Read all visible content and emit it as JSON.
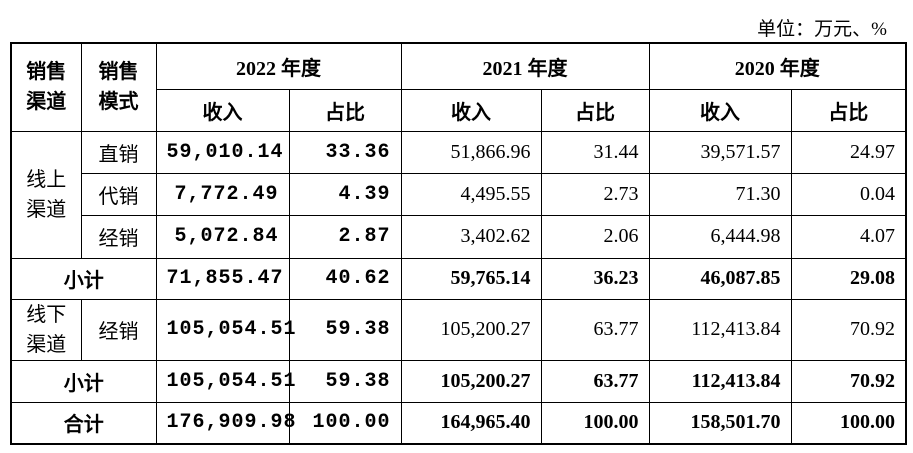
{
  "unit": "单位：万元、%",
  "table": {
    "head": {
      "channel": "销售渠道",
      "mode": "销售模式",
      "years": [
        "2022 年度",
        "2021 年度",
        "2020 年度"
      ],
      "sub": [
        "收入",
        "占比",
        "收入",
        "占比",
        "收入",
        "占比"
      ]
    },
    "online": {
      "channel": "线上渠道",
      "rows": [
        {
          "mode": "直销",
          "values": [
            "59,010.14",
            "33.36",
            "51,866.96",
            "31.44",
            "39,571.57",
            "24.97"
          ]
        },
        {
          "mode": "代销",
          "values": [
            "7,772.49",
            "4.39",
            "4,495.55",
            "2.73",
            "71.30",
            "0.04"
          ]
        },
        {
          "mode": "经销",
          "values": [
            "5,072.84",
            "2.87",
            "3,402.62",
            "2.06",
            "6,444.98",
            "4.07"
          ]
        }
      ]
    },
    "online_subtotal": {
      "label": "小计",
      "values": [
        "71,855.47",
        "40.62",
        "59,765.14",
        "36.23",
        "46,087.85",
        "29.08"
      ]
    },
    "offline": {
      "channel": "线下渠道",
      "mode": "经销",
      "values": [
        "105,054.51",
        "59.38",
        "105,200.27",
        "63.77",
        "112,413.84",
        "70.92"
      ]
    },
    "offline_subtotal": {
      "label": "小计",
      "values": [
        "105,054.51",
        "59.38",
        "105,200.27",
        "63.77",
        "112,413.84",
        "70.92"
      ]
    },
    "total": {
      "label": "合计",
      "values": [
        "176,909.98",
        "100.00",
        "164,965.40",
        "100.00",
        "158,501.70",
        "100.00"
      ]
    }
  }
}
